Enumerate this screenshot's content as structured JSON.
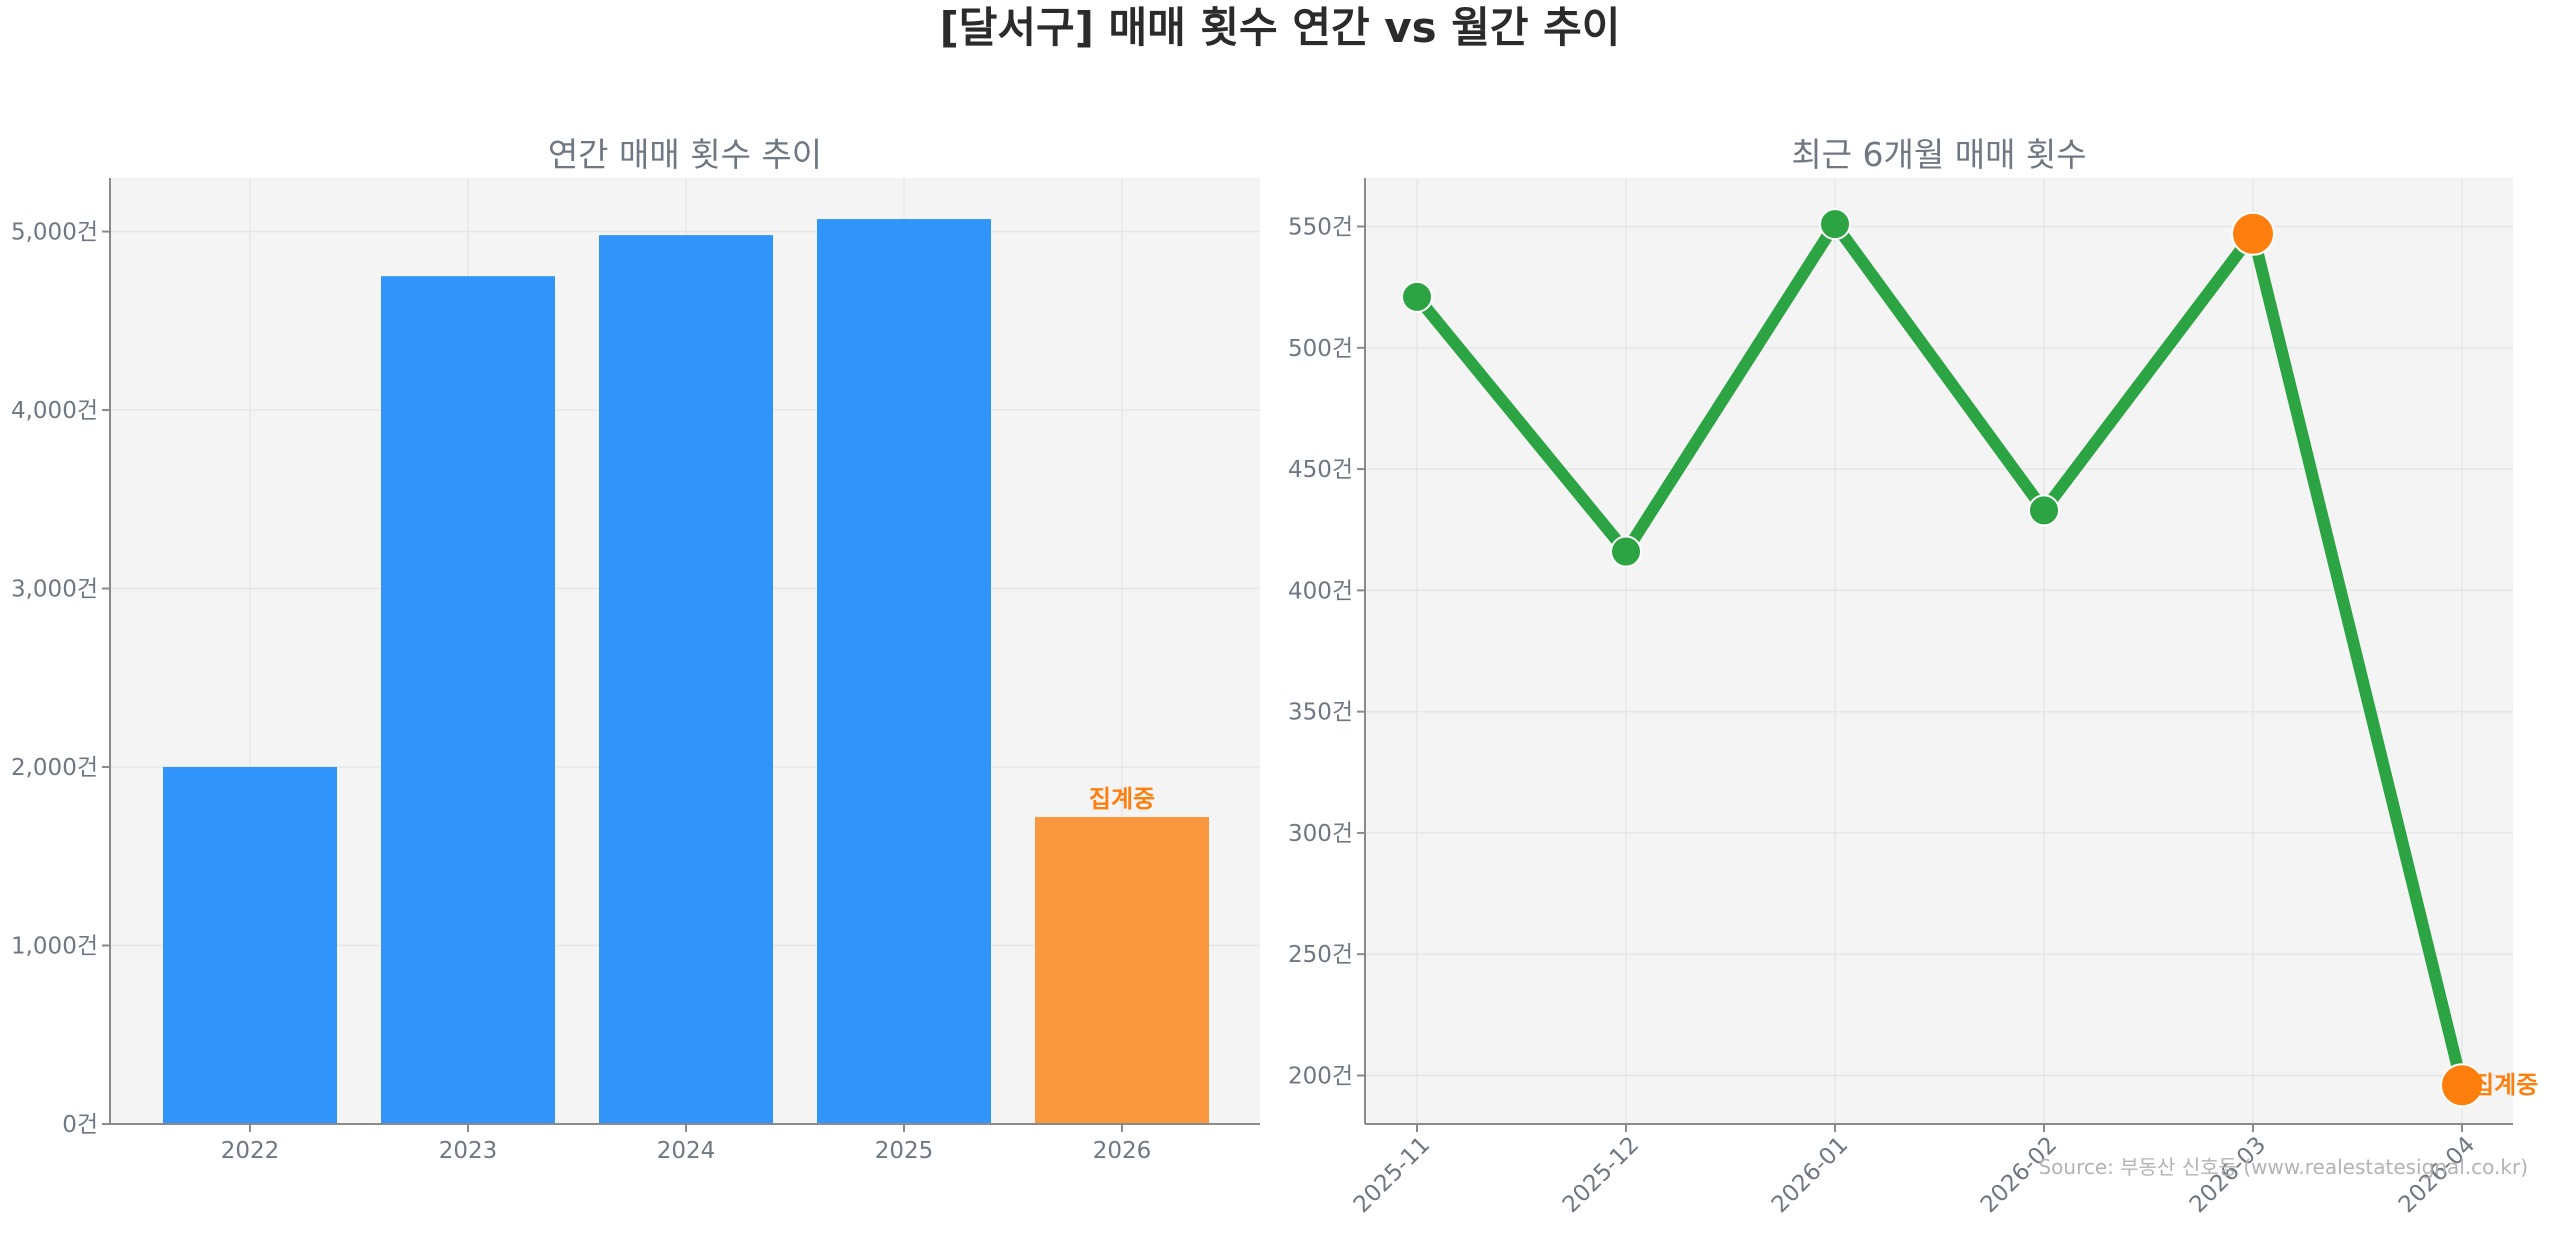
{
  "figure_title": "[달서구] 매매 횟수 연간 vs 월간 추이",
  "source": "Source: 부동산 신호등 (www.realestatesignal.co.kr)",
  "colors": {
    "bar": "#3094fb",
    "bar_highlight": "#fa983f",
    "line": "#2ca443",
    "marker_highlight": "#ff7f0e",
    "panel_bg": "#f4f4f4"
  },
  "chart_data": [
    {
      "type": "bar",
      "title": "연간 매매 횟수 추이",
      "categories": [
        "2022",
        "2023",
        "2024",
        "2025",
        "2026"
      ],
      "values": [
        2000,
        4750,
        4980,
        5070,
        1720
      ],
      "highlight_index": 4,
      "annotation": "집계중",
      "ylim": [
        0,
        5300
      ],
      "yticks": [
        0,
        1000,
        2000,
        3000,
        4000,
        5000
      ],
      "ytick_labels": [
        "0건",
        "1,000건",
        "2,000건",
        "3,000건",
        "4,000건",
        "5,000건"
      ],
      "grid": true
    },
    {
      "type": "line",
      "title": "최근 6개월 매매 횟수",
      "categories": [
        "2025-11",
        "2025-12",
        "2026-01",
        "2026-02",
        "2026-03",
        "2026-04"
      ],
      "values": [
        521,
        416,
        551,
        433,
        547,
        196
      ],
      "highlight_indices": [
        4,
        5
      ],
      "annotation": "집계중",
      "ylim": [
        180,
        570
      ],
      "yticks": [
        200,
        250,
        300,
        350,
        400,
        450,
        500,
        550
      ],
      "ytick_labels": [
        "200건",
        "250건",
        "300건",
        "350건",
        "400건",
        "450건",
        "500건",
        "550건"
      ],
      "grid": true
    }
  ]
}
